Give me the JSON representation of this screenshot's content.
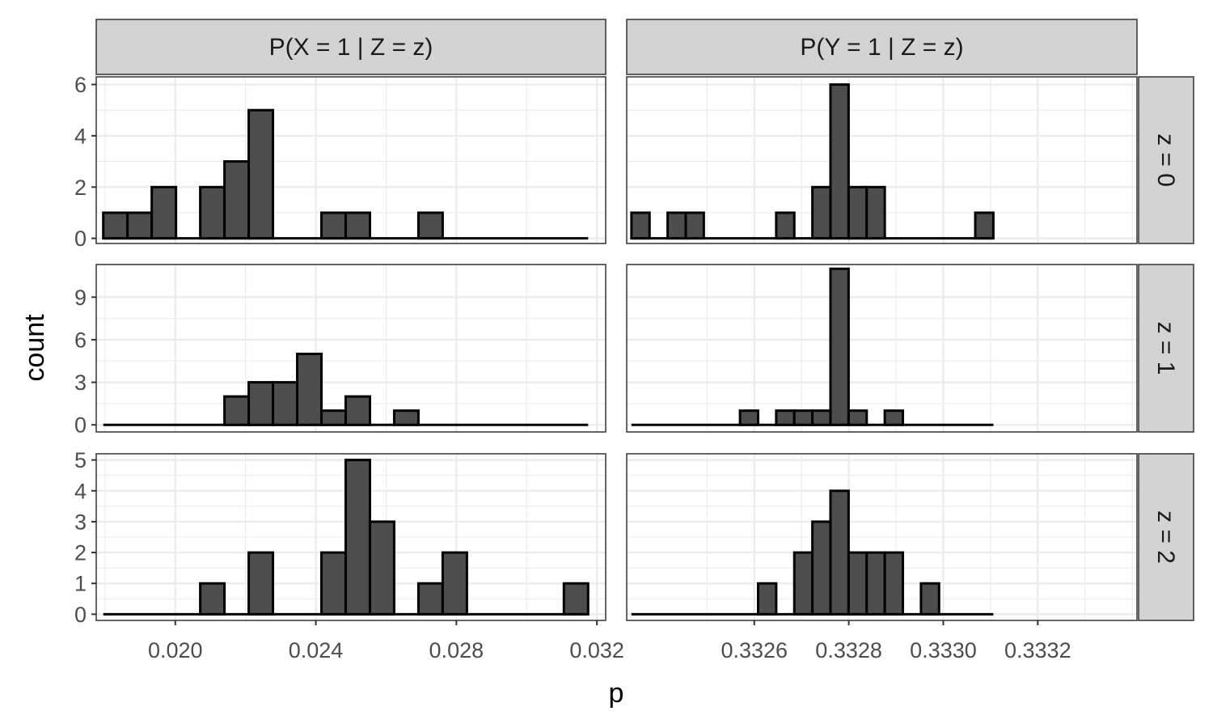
{
  "chart_data": {
    "type": "bar",
    "xlabel": "p",
    "ylabel": "count",
    "columns": [
      {
        "label": "P(X = 1 | Z = z)",
        "xlim": [
          0.01775,
          0.03225
        ],
        "xticks": [
          "0.020",
          "0.024",
          "0.028",
          "0.032"
        ],
        "xtick_values": [
          0.02,
          0.024,
          0.028,
          0.032
        ],
        "bin_start": 0.01795,
        "binwidth": 0.00069
      },
      {
        "label": "P(Y = 1 | Z = z)",
        "xlim": [
          0.33233,
          0.33341
        ],
        "xticks": [
          "0.3326",
          "0.3328",
          "0.3330",
          "0.3332"
        ],
        "xtick_values": [
          0.3326,
          0.3328,
          0.333,
          0.3332
        ],
        "bin_start": 0.33234,
        "binwidth": 3.83e-05
      }
    ],
    "rows": [
      {
        "label": "z = 0",
        "ylim": [
          -0.2,
          6.3
        ],
        "yticks": [
          0,
          2,
          4,
          6
        ]
      },
      {
        "label": "z = 1",
        "ylim": [
          -0.5,
          11.3
        ],
        "yticks": [
          0,
          3,
          6,
          9
        ]
      },
      {
        "label": "z = 2",
        "ylim": [
          -0.2,
          5.2
        ],
        "yticks": [
          0,
          1,
          2,
          3,
          4,
          5
        ]
      }
    ],
    "panels": [
      {
        "row": 0,
        "col": 0,
        "counts": [
          1,
          1,
          2,
          0,
          2,
          3,
          5,
          0,
          0,
          1,
          1,
          0,
          0,
          1,
          0,
          0,
          0,
          0,
          0,
          0
        ]
      },
      {
        "row": 0,
        "col": 1,
        "counts": [
          1,
          0,
          1,
          1,
          0,
          0,
          0,
          0,
          1,
          0,
          2,
          6,
          2,
          2,
          0,
          0,
          0,
          0,
          0,
          1
        ]
      },
      {
        "row": 1,
        "col": 0,
        "counts": [
          0,
          0,
          0,
          0,
          0,
          2,
          3,
          3,
          5,
          1,
          2,
          0,
          1,
          0,
          0,
          0,
          0,
          0,
          0,
          0
        ]
      },
      {
        "row": 1,
        "col": 1,
        "counts": [
          0,
          0,
          0,
          0,
          0,
          0,
          1,
          0,
          1,
          1,
          1,
          11,
          1,
          0,
          1,
          0,
          0,
          0,
          0,
          0
        ]
      },
      {
        "row": 2,
        "col": 0,
        "counts": [
          0,
          0,
          0,
          0,
          1,
          0,
          2,
          0,
          0,
          2,
          5,
          3,
          0,
          1,
          2,
          0,
          0,
          0,
          0,
          1
        ]
      },
      {
        "row": 2,
        "col": 1,
        "counts": [
          0,
          0,
          0,
          0,
          0,
          0,
          0,
          1,
          0,
          2,
          3,
          4,
          2,
          2,
          2,
          0,
          1,
          0,
          0,
          0
        ]
      }
    ],
    "style": {
      "bar_fill": "#4d4d4d",
      "bar_outline": "#000000",
      "strip_fill": "#d3d3d3",
      "grid": true,
      "legend": "none"
    }
  }
}
